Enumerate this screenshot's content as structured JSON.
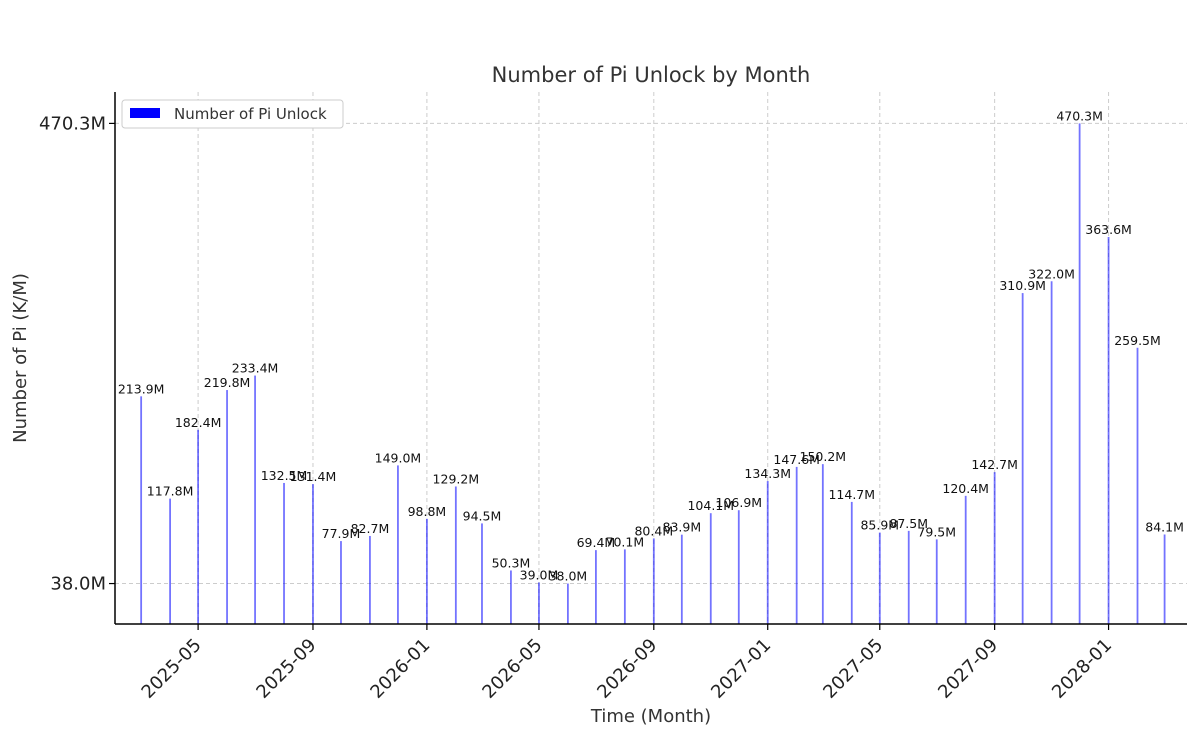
{
  "chart_data": {
    "type": "bar",
    "title": "Number of Pi Unlock by Month",
    "xlabel": "Time (Month)",
    "ylabel": "Number of Pi (K/M)",
    "legend": {
      "label": "Number of Pi Unlock",
      "position": "top-left"
    },
    "grid": true,
    "color": "#0000ff",
    "ylim": [
      0,
      499.8
    ],
    "yticks": [
      {
        "value": 38.0,
        "label": "38.0M"
      },
      {
        "value": 470.3,
        "label": "470.3M"
      }
    ],
    "xlim": [
      "2025-02-01",
      "2028-03-25"
    ],
    "xticks": [
      "2025-05",
      "2025-09",
      "2026-01",
      "2026-05",
      "2026-09",
      "2027-01",
      "2027-05",
      "2027-09",
      "2028-01"
    ],
    "dates": [
      "2025-03-01",
      "2025-04-01",
      "2025-05-01",
      "2025-06-01",
      "2025-07-01",
      "2025-08-01",
      "2025-09-01",
      "2025-10-01",
      "2025-11-01",
      "2025-12-01",
      "2026-01-01",
      "2026-02-01",
      "2026-03-01",
      "2026-04-01",
      "2026-05-01",
      "2026-06-01",
      "2026-07-01",
      "2026-08-01",
      "2026-09-01",
      "2026-10-01",
      "2026-11-01",
      "2026-12-01",
      "2027-01-01",
      "2027-02-01",
      "2027-03-01",
      "2027-04-01",
      "2027-05-01",
      "2027-06-01",
      "2027-07-01",
      "2027-08-01",
      "2027-09-01",
      "2027-10-01",
      "2027-11-01",
      "2027-12-01",
      "2028-01-01",
      "2028-02-01",
      "2028-03-01"
    ],
    "values": [
      213.9,
      117.8,
      182.4,
      219.8,
      233.4,
      132.5,
      131.4,
      77.9,
      82.7,
      149.0,
      98.8,
      129.2,
      94.5,
      50.3,
      39.0,
      38.0,
      69.4,
      70.1,
      80.4,
      83.9,
      104.1,
      106.9,
      134.3,
      147.6,
      150.2,
      114.7,
      85.9,
      87.5,
      79.5,
      120.4,
      142.7,
      310.9,
      322.0,
      470.3,
      363.6,
      259.5,
      84.1
    ],
    "labels": [
      "213.9M",
      "117.8M",
      "182.4M",
      "219.8M",
      "233.4M",
      "132.5M",
      "131.4M",
      "77.9M",
      "82.7M",
      "149.0M",
      "98.8M",
      "129.2M",
      "94.5M",
      "50.3M",
      "39.0M",
      "38.0M",
      "69.4M",
      "70.1M",
      "80.4M",
      "83.9M",
      "104.1M",
      "106.9M",
      "134.3M",
      "147.6M",
      "150.2M",
      "114.7M",
      "85.9M",
      "87.5M",
      "79.5M",
      "120.4M",
      "142.7M",
      "310.9M",
      "322.0M",
      "470.3M",
      "363.6M",
      "259.5M",
      "84.1M"
    ]
  }
}
